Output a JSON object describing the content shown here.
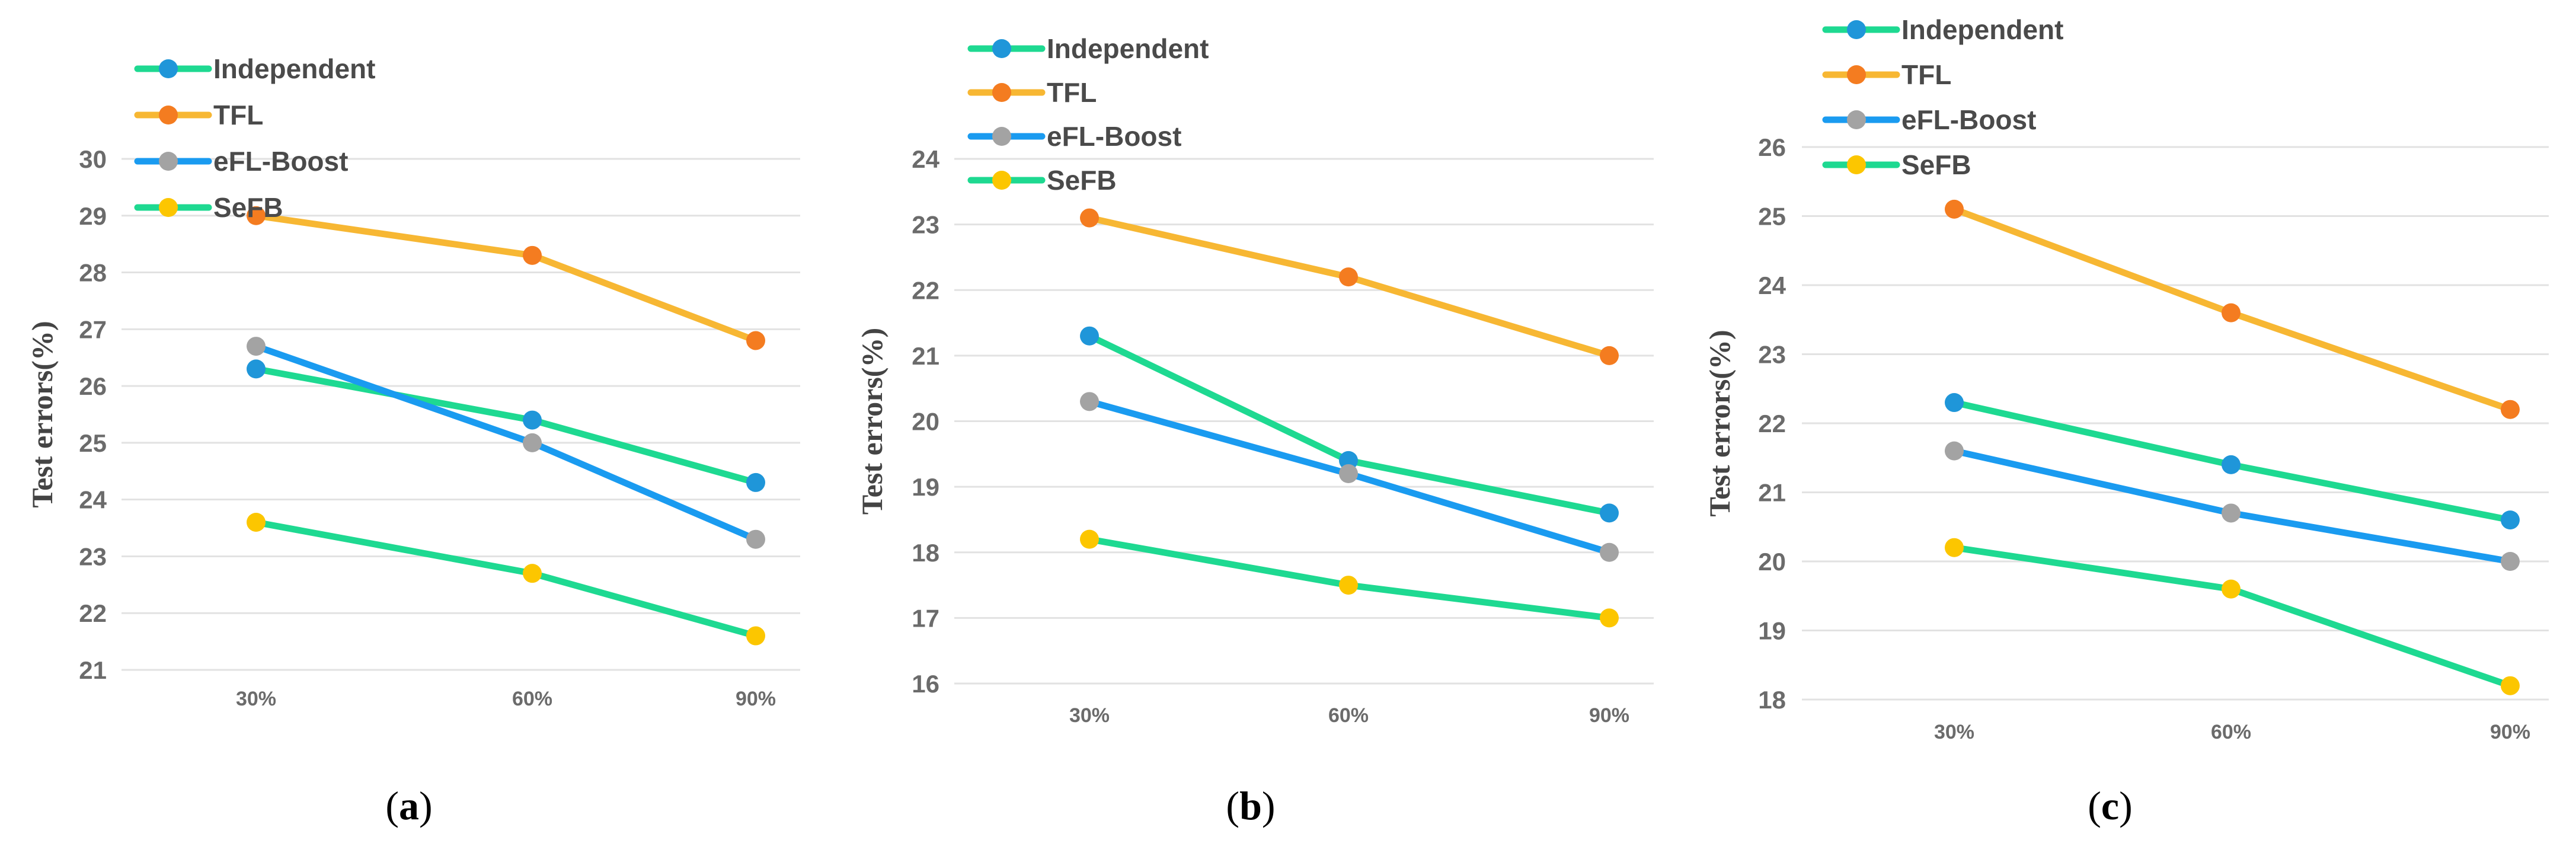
{
  "chart_data": [
    {
      "type": "line",
      "panel_label": "a",
      "categories": [
        "30%",
        "60%",
        "90%"
      ],
      "ylabel": "Test errors(%)",
      "ylim": [
        21,
        30
      ],
      "yticks": [
        21,
        22,
        23,
        24,
        25,
        26,
        27,
        28,
        29,
        30
      ],
      "legend_placement": "top-left",
      "series": [
        {
          "name": "Independent",
          "values": [
            26.3,
            25.4,
            24.3
          ],
          "line_color": "#1ed991",
          "marker_color": "#1f96d9"
        },
        {
          "name": "TFL",
          "values": [
            29.0,
            28.3,
            26.8
          ],
          "line_color": "#f7b733",
          "marker_color": "#f47c20"
        },
        {
          "name": "eFL-Boost",
          "values": [
            26.7,
            25.0,
            23.3
          ],
          "line_color": "#1a9bf0",
          "marker_color": "#a3a3a3"
        },
        {
          "name": "SeFB",
          "values": [
            23.6,
            22.7,
            21.6
          ],
          "line_color": "#1ed991",
          "marker_color": "#fcc600"
        }
      ]
    },
    {
      "type": "line",
      "panel_label": "b",
      "categories": [
        "30%",
        "60%",
        "90%"
      ],
      "ylabel": "Test errors(%)",
      "ylim": [
        16,
        24
      ],
      "yticks": [
        16,
        17,
        18,
        19,
        20,
        21,
        22,
        23,
        24
      ],
      "legend_placement": "top-left",
      "series": [
        {
          "name": "Independent",
          "values": [
            21.3,
            19.4,
            18.6
          ],
          "line_color": "#1ed991",
          "marker_color": "#1f96d9"
        },
        {
          "name": "TFL",
          "values": [
            23.1,
            22.2,
            21.0
          ],
          "line_color": "#f7b733",
          "marker_color": "#f47c20"
        },
        {
          "name": "eFL-Boost",
          "values": [
            20.3,
            19.2,
            18.0
          ],
          "line_color": "#1a9bf0",
          "marker_color": "#a3a3a3"
        },
        {
          "name": "SeFB",
          "values": [
            18.2,
            17.5,
            17.0
          ],
          "line_color": "#1ed991",
          "marker_color": "#fcc600"
        }
      ]
    },
    {
      "type": "line",
      "panel_label": "c",
      "categories": [
        "30%",
        "60%",
        "90%"
      ],
      "ylabel": "Test errors(%)",
      "ylim": [
        18,
        26
      ],
      "yticks": [
        18,
        19,
        20,
        21,
        22,
        23,
        24,
        25,
        26
      ],
      "legend_placement": "top-left",
      "series": [
        {
          "name": "Independent",
          "values": [
            22.3,
            21.4,
            20.6
          ],
          "line_color": "#1ed991",
          "marker_color": "#1f96d9"
        },
        {
          "name": "TFL",
          "values": [
            25.1,
            23.6,
            22.2
          ],
          "line_color": "#f7b733",
          "marker_color": "#f47c20"
        },
        {
          "name": "eFL-Boost",
          "values": [
            21.6,
            20.7,
            20.0
          ],
          "line_color": "#1a9bf0",
          "marker_color": "#a3a3a3"
        },
        {
          "name": "SeFB",
          "values": [
            20.2,
            19.6,
            18.2
          ],
          "line_color": "#1ed991",
          "marker_color": "#fcc600"
        }
      ]
    }
  ]
}
